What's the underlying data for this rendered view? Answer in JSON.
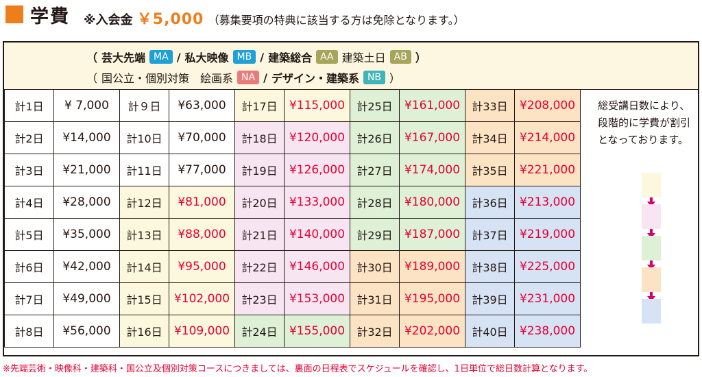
{
  "header": {
    "title": "学費",
    "fee_prefix": "※入会金",
    "fee_amount": "￥5,000",
    "fee_condition": "（募集要項の特典に該当する方は免除となります。）"
  },
  "legend": {
    "line1": {
      "open": "（",
      "groups": [
        {
          "label": "芸大先端",
          "badge": "MA",
          "sep": "/"
        },
        {
          "label": "私大映像",
          "badge": "MB",
          "sep": "/"
        },
        {
          "label": "建築総合",
          "badge": "AA",
          "sep": ""
        },
        {
          "label": "建築土日",
          "badge": "AB",
          "sep": ""
        }
      ],
      "close": "）"
    },
    "line2": {
      "open": "（",
      "groups": [
        {
          "label": "国公立・個別対策　絵画系",
          "badge": "NA",
          "sep": "/"
        },
        {
          "label": "デザイン・建築系",
          "badge": "NB",
          "sep": ""
        }
      ],
      "close": "）"
    }
  },
  "rows": [
    [
      "計1日",
      "¥  7,000",
      "計９日",
      "¥63,000",
      "計17日",
      "¥115,000",
      "計25日",
      "¥161,000",
      "計33日",
      "¥208,000"
    ],
    [
      "計2日",
      "¥14,000",
      "計10日",
      "¥70,000",
      "計18日",
      "¥120,000",
      "計26日",
      "¥167,000",
      "計34日",
      "¥214,000"
    ],
    [
      "計3日",
      "¥21,000",
      "計11日",
      "¥77,000",
      "計19日",
      "¥126,000",
      "計27日",
      "¥174,000",
      "計35日",
      "¥221,000"
    ],
    [
      "計4日",
      "¥28,000",
      "計12日",
      "¥81,000",
      "計20日",
      "¥133,000",
      "計28日",
      "¥180,000",
      "計36日",
      "¥213,000"
    ],
    [
      "計5日",
      "¥35,000",
      "計13日",
      "¥88,000",
      "計21日",
      "¥140,000",
      "計29日",
      "¥187,000",
      "計37日",
      "¥219,000"
    ],
    [
      "計6日",
      "¥42,000",
      "計14日",
      "¥95,000",
      "計22日",
      "¥146,000",
      "計30日",
      "¥189,000",
      "計38日",
      "¥225,000"
    ],
    [
      "計7日",
      "¥49,000",
      "計15日",
      "¥102,000",
      "計23日",
      "¥153,000",
      "計31日",
      "¥195,000",
      "計39日",
      "¥231,000"
    ],
    [
      "計8日",
      "¥56,000",
      "計16日",
      "¥109,000",
      "計24日",
      "¥155,000",
      "計32日",
      "¥202,000",
      "計40日",
      "¥238,000"
    ]
  ],
  "tiers": {
    "colors": {
      "w": "#ffffff",
      "y": "#fbf8de",
      "k": "#f7e5f1",
      "g": "#def0d5",
      "o": "#fce3c4",
      "b": "#d6e3f5"
    },
    "order": [
      "y",
      "k",
      "g",
      "o",
      "b"
    ]
  },
  "price_color": "#e60033",
  "side_note": "総受講日数により、段階的に学費が割引となっております。",
  "footnote": "※先端芸術・映像科・建築科・国公立及個別対策コースにつきましては、裏面の日程表でスケジュールを確認し、1日単位で総日数計算となります。"
}
